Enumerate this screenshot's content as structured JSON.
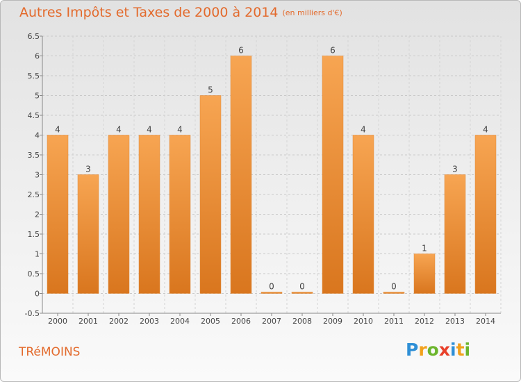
{
  "header": {
    "title": "Autres Impôts et Taxes de 2000 à 2014",
    "unit": "(en milliers d'€)"
  },
  "footer": {
    "commune": "TRéMOINS",
    "logo_letters": [
      {
        "ch": "P",
        "color": "#2e8fd6"
      },
      {
        "ch": "r",
        "color": "#f2a11c"
      },
      {
        "ch": "o",
        "color": "#6cb52d"
      },
      {
        "ch": "x",
        "color": "#e8402a"
      },
      {
        "ch": "i",
        "color": "#2e8fd6"
      },
      {
        "ch": "t",
        "color": "#f2a11c"
      },
      {
        "ch": "i",
        "color": "#6cb52d"
      }
    ]
  },
  "chart_data": {
    "type": "bar",
    "title": "Autres Impôts et Taxes de 2000 à 2014",
    "subtitle": "(en milliers d'€)",
    "categories": [
      "2000",
      "2001",
      "2002",
      "2003",
      "2004",
      "2005",
      "2006",
      "2007",
      "2008",
      "2009",
      "2010",
      "2011",
      "2012",
      "2013",
      "2014"
    ],
    "values": [
      4,
      3,
      4,
      4,
      4,
      5,
      6,
      0,
      0,
      6,
      4,
      0,
      1,
      3,
      4
    ],
    "ylim": [
      -0.5,
      6.5
    ],
    "yticks": [
      "-0.5",
      "0",
      "0.5",
      "1",
      "1.5",
      "2",
      "2.5",
      "3",
      "3.5",
      "4",
      "4.5",
      "5",
      "5.5",
      "6",
      "6.5"
    ],
    "grid": true,
    "bar_color": "#f0923a"
  }
}
